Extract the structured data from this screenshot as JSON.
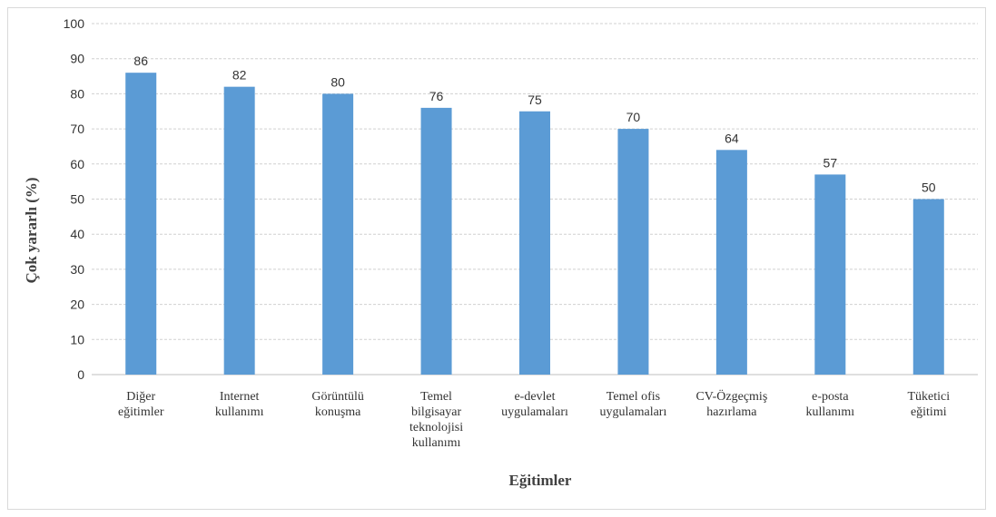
{
  "chart_data": {
    "type": "bar",
    "title": "",
    "xlabel": "Eğitimler",
    "ylabel": "Çok yararlı (%)",
    "ylim": [
      0,
      100
    ],
    "yticks": [
      0,
      10,
      20,
      30,
      40,
      50,
      60,
      70,
      80,
      90,
      100
    ],
    "grid": true,
    "legend": "none",
    "bar_color": "#5b9bd5",
    "categories": [
      [
        "Diğer",
        "eğitimler"
      ],
      [
        "Internet",
        "kullanımı"
      ],
      [
        "Görüntülü",
        "konuşma"
      ],
      [
        "Temel",
        "bilgisayar",
        "teknolojisi",
        "kullanımı"
      ],
      [
        "e-devlet",
        "uygulamaları"
      ],
      [
        "Temel ofis",
        "uygulamaları"
      ],
      [
        "CV-Özgeçmiş",
        "hazırlama"
      ],
      [
        "e-posta",
        "kullanımı"
      ],
      [
        "Tüketici",
        "eğitimi"
      ]
    ],
    "values": [
      86,
      82,
      80,
      76,
      75,
      70,
      64,
      57,
      50
    ]
  }
}
